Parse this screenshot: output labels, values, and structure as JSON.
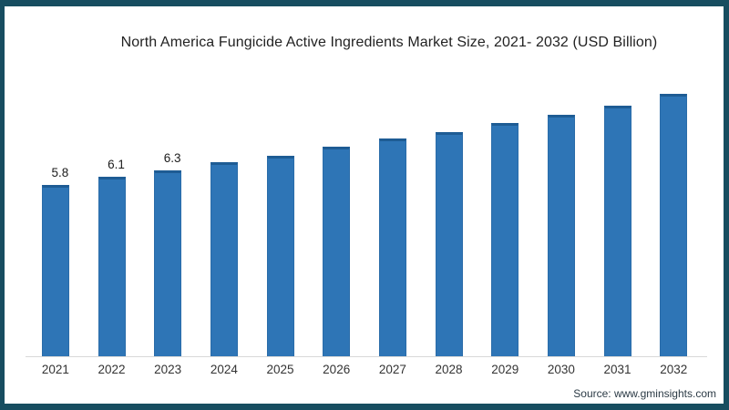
{
  "frame": {
    "border_color": "#174D60",
    "background_color": "#FFFFFF"
  },
  "title": "North America Fungicide Active Ingredients Market Size, 2021- 2032 (USD Billion)",
  "source": "Source: www.gminsights.com",
  "colors": {
    "bar": "#2E75B6",
    "bar_cap": "#1E5C94",
    "bar_edge": "#2A6CA9",
    "axis_line": "#D8D8D8",
    "title_text": "#222222",
    "axis_text": "#333333",
    "value_text": "#1C1C1C",
    "source_text": "#2B3A45"
  },
  "chart_data": {
    "type": "bar",
    "title": "North America Fungicide Active Ingredients Market Size, 2021- 2032 (USD Billion)",
    "categories": [
      "2021",
      "2022",
      "2023",
      "2024",
      "2025",
      "2026",
      "2027",
      "2028",
      "2029",
      "2030",
      "2031",
      "2032"
    ],
    "values": [
      5.8,
      6.1,
      6.3,
      6.6,
      6.8,
      7.1,
      7.4,
      7.6,
      7.9,
      8.2,
      8.5,
      8.9
    ],
    "data_labels": [
      "5.8",
      "6.1",
      "6.3",
      "",
      "",
      "",
      "",
      "",
      "",
      "",
      "",
      ""
    ],
    "xlabel": "",
    "ylabel": "",
    "unit": "USD Billion",
    "ylim": [
      0,
      9.15
    ],
    "grid": false,
    "legend": false,
    "legend_position": "none",
    "bar_color": "#2E75B6",
    "source_label": "Source: www.gminsights.com"
  }
}
